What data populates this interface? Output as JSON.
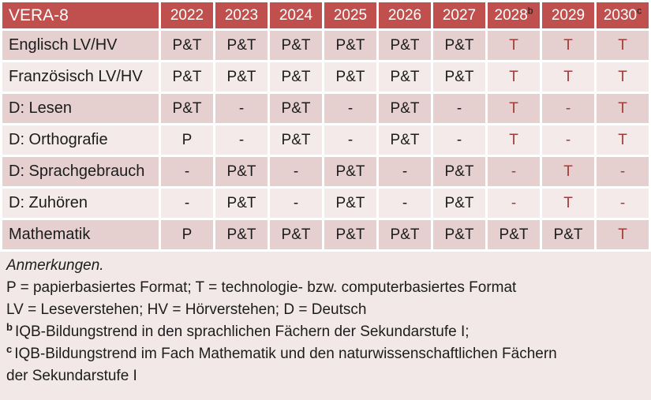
{
  "table": {
    "header": [
      "VERA-8",
      "2022",
      "2023",
      "2024",
      "2025",
      "2026",
      "2027",
      "2028",
      "2029",
      "2030"
    ],
    "header_sup": {
      "7": "b",
      "9": "c"
    },
    "rows": [
      {
        "label": "Englisch LV/HV",
        "values": [
          {
            "t": "P&T"
          },
          {
            "t": "P&T"
          },
          {
            "t": "P&T"
          },
          {
            "t": "P&T"
          },
          {
            "t": "P&T"
          },
          {
            "t": "P&T"
          },
          {
            "t": "T",
            "red": true
          },
          {
            "t": "T",
            "red": true
          },
          {
            "t": "T",
            "red": true
          }
        ]
      },
      {
        "label": "Französisch LV/HV",
        "values": [
          {
            "t": "P&T"
          },
          {
            "t": "P&T"
          },
          {
            "t": "P&T"
          },
          {
            "t": "P&T"
          },
          {
            "t": "P&T"
          },
          {
            "t": "P&T"
          },
          {
            "t": "T",
            "red": true
          },
          {
            "t": "T",
            "red": true
          },
          {
            "t": "T",
            "red": true
          }
        ]
      },
      {
        "label": "D: Lesen",
        "values": [
          {
            "t": "P&T"
          },
          {
            "t": "-"
          },
          {
            "t": "P&T"
          },
          {
            "t": "-"
          },
          {
            "t": "P&T"
          },
          {
            "t": "-"
          },
          {
            "t": "T",
            "red": true
          },
          {
            "t": "-",
            "red": true
          },
          {
            "t": "T",
            "red": true
          }
        ]
      },
      {
        "label": "D: Orthografie",
        "values": [
          {
            "t": "P"
          },
          {
            "t": "-"
          },
          {
            "t": "P&T"
          },
          {
            "t": "-"
          },
          {
            "t": "P&T"
          },
          {
            "t": "-"
          },
          {
            "t": "T",
            "red": true
          },
          {
            "t": "-",
            "red": true
          },
          {
            "t": "T",
            "red": true
          }
        ]
      },
      {
        "label": "D: Sprachgebrauch",
        "values": [
          {
            "t": "-"
          },
          {
            "t": "P&T"
          },
          {
            "t": "-"
          },
          {
            "t": "P&T"
          },
          {
            "t": "-"
          },
          {
            "t": "P&T"
          },
          {
            "t": "-",
            "red": true
          },
          {
            "t": "T",
            "red": true
          },
          {
            "t": "-",
            "red": true
          }
        ]
      },
      {
        "label": "D: Zuhören",
        "values": [
          {
            "t": "-"
          },
          {
            "t": "P&T"
          },
          {
            "t": "-"
          },
          {
            "t": "P&T"
          },
          {
            "t": "-"
          },
          {
            "t": "P&T"
          },
          {
            "t": "-",
            "red": true
          },
          {
            "t": "T",
            "red": true
          },
          {
            "t": "-",
            "red": true
          }
        ]
      },
      {
        "label": "Mathematik",
        "values": [
          {
            "t": "P"
          },
          {
            "t": "P&T"
          },
          {
            "t": "P&T"
          },
          {
            "t": "P&T"
          },
          {
            "t": "P&T"
          },
          {
            "t": "P&T"
          },
          {
            "t": "P&T"
          },
          {
            "t": "P&T"
          },
          {
            "t": "T",
            "red": true
          }
        ]
      }
    ]
  },
  "notes": {
    "title": "Anmerkungen.",
    "lines": [
      {
        "sup": "",
        "text": "P = papierbasiertes Format; T = technologie- bzw. computerbasiertes Format"
      },
      {
        "sup": "",
        "text": "LV = Leseverstehen; HV = Hörverstehen; D = Deutsch"
      },
      {
        "sup": "b",
        "text": "IQB-Bildungstrend in den sprachlichen Fächern der Sekundarstufe I;"
      },
      {
        "sup": "c",
        "text": "IQB-Bildungstrend im Fach Mathematik und den naturwissenschaftlichen Fächern der Sekundarstufe I"
      }
    ]
  },
  "colors": {
    "header_bg": "#C0504D",
    "header_text": "#FFFFFF",
    "band_dark": "#E6CFCF",
    "band_light": "#F4EAEA",
    "notes_bg": "#F2E8E8",
    "accent_red": "#A03C3A",
    "grid": "#FFFFFF",
    "text": "#1C1C1C"
  }
}
